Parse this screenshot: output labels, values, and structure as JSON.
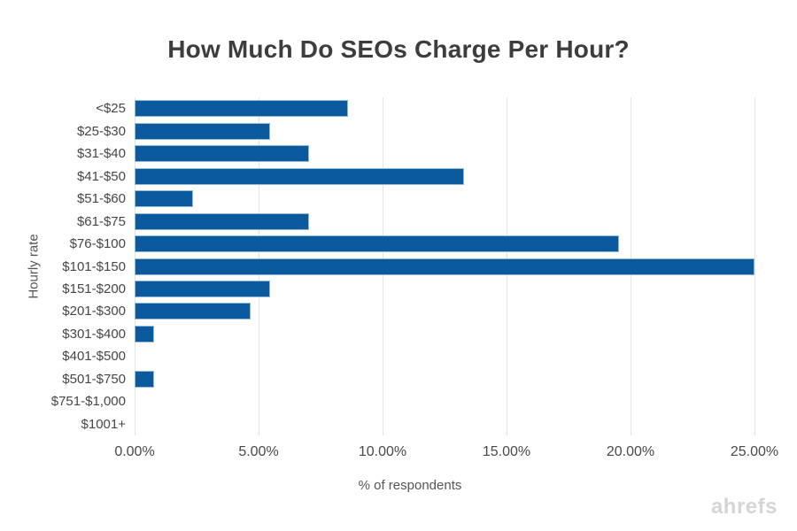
{
  "title": "How Much Do SEOs Charge Per Hour?",
  "watermark": "ahrefs",
  "colors": {
    "bar_fill": "#0b5a9d",
    "bar_stroke": "#93b9da",
    "gridline": "#e4e4e4",
    "title_text": "#3d3d3d",
    "axis_text": "#484848",
    "watermark_text": "#d5d5d5"
  },
  "chart_data": {
    "type": "bar",
    "orientation": "horizontal",
    "title": "How Much Do SEOs Charge Per Hour?",
    "categories": [
      "<$25",
      "$25-$30",
      "$31-$40",
      "$41-$50",
      "$51-$60",
      "$61-$75",
      "$76-$100",
      "$101-$150",
      "$151-$200",
      "$201-$300",
      "$301-$400",
      "$401-$500",
      "$501-$750",
      "$751-$1,000",
      "$1001+"
    ],
    "values": [
      8.59,
      5.47,
      7.03,
      13.28,
      2.34,
      7.03,
      19.53,
      25.0,
      5.47,
      4.69,
      0.78,
      0.0,
      0.78,
      0.0,
      0.0
    ],
    "xlabel": "% of respondents",
    "ylabel": "Hourly rate",
    "xlim": [
      0,
      25
    ],
    "xticks": [
      0,
      5,
      10,
      15,
      20,
      25
    ],
    "xtick_labels": [
      "0.00%",
      "5.00%",
      "10.00%",
      "15.00%",
      "20.00%",
      "25.00%"
    ],
    "grid": true,
    "legend": false
  }
}
